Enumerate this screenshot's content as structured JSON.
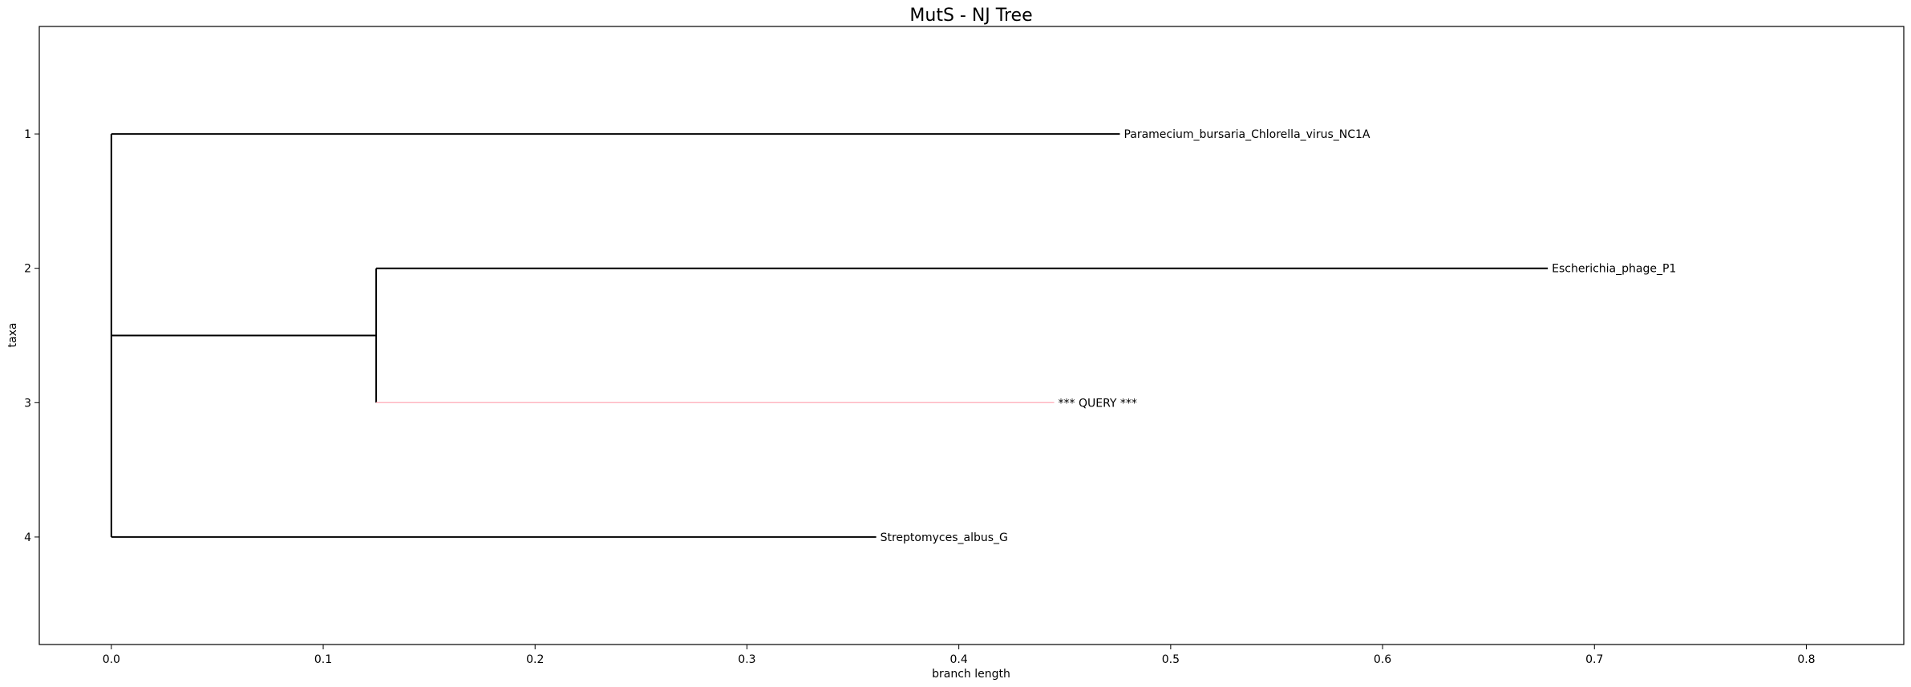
{
  "chart_data": {
    "type": "dendrogram",
    "title": "MutS - NJ Tree",
    "xlabel": "branch length",
    "ylabel": "taxa",
    "xlim": [
      -0.034,
      0.846
    ],
    "ylim": [
      4.8,
      0.2
    ],
    "xticks": [
      0.0,
      0.1,
      0.2,
      0.3,
      0.4,
      0.5,
      0.6,
      0.7,
      0.8
    ],
    "xtick_labels": [
      "0.0",
      "0.1",
      "0.2",
      "0.3",
      "0.4",
      "0.5",
      "0.6",
      "0.7",
      "0.8"
    ],
    "yticks": [
      1,
      2,
      3,
      4
    ],
    "ytick_labels": [
      "1",
      "2",
      "3",
      "4"
    ],
    "grid": false,
    "leaves": [
      {
        "taxon": 1,
        "label": "Paramecium_bursaria_Chlorella_virus_NC1A",
        "branch_start": 0.0,
        "branch_end": 0.476,
        "color": "#000000"
      },
      {
        "taxon": 2,
        "label": "Escherichia_phage_P1",
        "branch_start": 0.125,
        "branch_end": 0.678,
        "color": "#000000"
      },
      {
        "taxon": 3,
        "label": "*** QUERY ***",
        "branch_start": 0.125,
        "branch_end": 0.445,
        "color": "#ffb6c1"
      },
      {
        "taxon": 4,
        "label": "Streptomyces_albus_G",
        "branch_start": 0.0,
        "branch_end": 0.361,
        "color": "#000000"
      }
    ],
    "internal_nodes": [
      {
        "x": 0.0,
        "y_span": [
          1,
          4
        ],
        "color": "#000000"
      },
      {
        "x": 0.125,
        "y_span": [
          2,
          3
        ],
        "y_mid": 2.5,
        "parent_x": 0.0,
        "color": "#000000"
      }
    ]
  }
}
